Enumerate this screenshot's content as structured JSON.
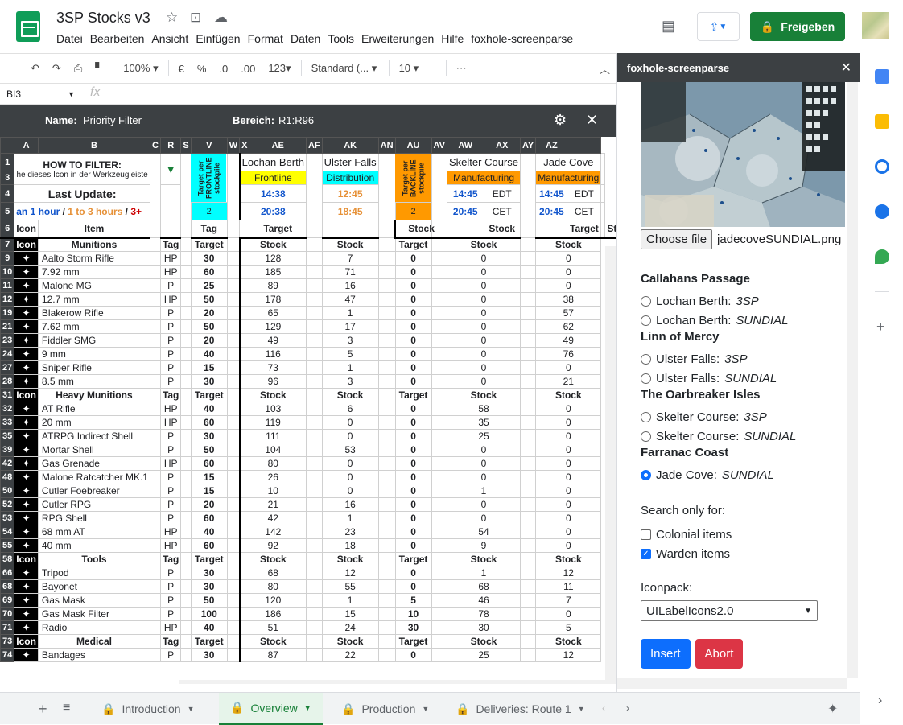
{
  "app": {
    "title": "3SP Stocks v3",
    "menu": [
      "Datei",
      "Bearbeiten",
      "Ansicht",
      "Einfügen",
      "Format",
      "Daten",
      "Tools",
      "Erweiterungen",
      "Hilfe",
      "foxhole-screenparse"
    ],
    "share_label": "Freigeben"
  },
  "toolbar": {
    "zoom": "100%",
    "currency": "€",
    "percent": "%",
    "dec_less": ".0",
    "dec_more": ".00",
    "format_more": "123",
    "font": "Standard (...",
    "font_size": "10",
    "more": "⋯"
  },
  "formula": {
    "cell_ref": "BI3",
    "fx": "fx"
  },
  "filterbar": {
    "name_label": "Name:",
    "name_value": "Priority Filter",
    "range_label": "Bereich:",
    "range_value": "R1:R96"
  },
  "columns": [
    "A",
    "B",
    "C",
    "R",
    "S",
    "V",
    "W",
    "X",
    "AE",
    "AF",
    "AK",
    "AN",
    "AU",
    "AV",
    "AW",
    "AX",
    "AY",
    "AZ"
  ],
  "header": {
    "how_to_filter": "HOW TO FILTER:",
    "how_to_filter_sub": "he dieses Icon in der Werkzeugleiste",
    "last_update": "Last Update:",
    "legend_blue": "an 1 hour",
    "legend_sep1": " / ",
    "legend_orange": "1 to 3 hours",
    "legend_sep2": " / ",
    "legend_red": "3+",
    "target_frontline": "Target per FRONTLINE stockpile",
    "target_backline": "Target per BACKLINE stockpile",
    "frontline_val": "2",
    "backline_val": "2",
    "icon": "Icon",
    "item": "Item",
    "tag": "Tag",
    "target": "Target",
    "stock": "Stock",
    "filter_icon": "▼",
    "locations": [
      {
        "name": "Lochan Berth",
        "type": "Frontline",
        "t1": "14:38",
        "t2": "20:38",
        "tz1": "",
        "tz2": "",
        "color": "blue"
      },
      {
        "name": "Ulster Falls",
        "type": "Distribution",
        "t1": "12:45",
        "t2": "18:45",
        "tz1": "",
        "tz2": "",
        "color": "orange"
      },
      {
        "name": "Skelter Course",
        "type": "Manufacturing",
        "t1": "14:45",
        "t2": "20:45",
        "tz1": "EDT",
        "tz2": "CET",
        "color": "blue"
      },
      {
        "name": "Jade Cove",
        "type": "Manufacturing",
        "t1": "14:45",
        "t2": "20:45",
        "tz1": "EDT",
        "tz2": "CET",
        "color": "blue"
      }
    ]
  },
  "rows": [
    {
      "rn": "7",
      "section": "Munitions"
    },
    {
      "rn": "9",
      "item": "Aalto Storm Rifle",
      "tag": "HP",
      "target": "30",
      "s1": "128",
      "s2": "7",
      "t2": "0",
      "s3": "0",
      "s4": "0"
    },
    {
      "rn": "10",
      "item": "7.92 mm",
      "tag": "HP",
      "target": "60",
      "s1": "185",
      "s2": "71",
      "t2": "0",
      "s3": "0",
      "s4": "0"
    },
    {
      "rn": "11",
      "item": "Malone MG",
      "tag": "P",
      "target": "25",
      "s1": "89",
      "s2": "16",
      "t2": "0",
      "s3": "0",
      "s4": "0"
    },
    {
      "rn": "12",
      "item": "12.7 mm",
      "tag": "HP",
      "target": "50",
      "s1": "178",
      "s2": "47",
      "t2": "0",
      "s3": "0",
      "s4": "38"
    },
    {
      "rn": "19",
      "item": "Blakerow Rifle",
      "tag": "P",
      "target": "20",
      "s1": "65",
      "s2": "1",
      "t2": "0",
      "s3": "0",
      "s4": "57"
    },
    {
      "rn": "21",
      "item": "7.62 mm",
      "tag": "P",
      "target": "50",
      "s1": "129",
      "s2": "17",
      "t2": "0",
      "s3": "0",
      "s4": "62"
    },
    {
      "rn": "23",
      "item": "Fiddler SMG",
      "tag": "P",
      "target": "20",
      "s1": "49",
      "s2": "3",
      "t2": "0",
      "s3": "0",
      "s4": "49"
    },
    {
      "rn": "24",
      "item": "9 mm",
      "tag": "P",
      "target": "40",
      "s1": "116",
      "s2": "5",
      "t2": "0",
      "s3": "0",
      "s4": "76"
    },
    {
      "rn": "27",
      "item": "Sniper Rifle",
      "tag": "P",
      "target": "15",
      "s1": "73",
      "s2": "1",
      "t2": "0",
      "s3": "0",
      "s4": "0"
    },
    {
      "rn": "28",
      "item": "8.5 mm",
      "tag": "P",
      "target": "30",
      "s1": "96",
      "s2": "3",
      "t2": "0",
      "s3": "0",
      "s4": "21"
    },
    {
      "rn": "31",
      "section": "Heavy Munitions"
    },
    {
      "rn": "32",
      "item": "AT Rifle",
      "tag": "HP",
      "target": "40",
      "s1": "103",
      "s2": "6",
      "t2": "0",
      "s3": "58",
      "s4": "0"
    },
    {
      "rn": "33",
      "item": "20 mm",
      "tag": "HP",
      "target": "60",
      "s1": "119",
      "s2": "0",
      "t2": "0",
      "s3": "35",
      "s4": "0"
    },
    {
      "rn": "35",
      "item": "ATRPG Indirect Shell",
      "tag": "P",
      "target": "30",
      "s1": "111",
      "s2": "0",
      "t2": "0",
      "s3": "25",
      "s4": "0"
    },
    {
      "rn": "39",
      "item": "Mortar Shell",
      "tag": "P",
      "target": "50",
      "s1": "104",
      "s2": "53",
      "t2": "0",
      "s3": "0",
      "s4": "0"
    },
    {
      "rn": "42",
      "item": "Gas Grenade",
      "tag": "HP",
      "target": "60",
      "s1": "80",
      "s2": "0",
      "t2": "0",
      "s3": "0",
      "s4": "0"
    },
    {
      "rn": "48",
      "item": "Malone Ratcatcher MK.1",
      "tag": "P",
      "target": "15",
      "s1": "26",
      "s2": "0",
      "t2": "0",
      "s3": "0",
      "s4": "0"
    },
    {
      "rn": "50",
      "item": "Cutler Foebreaker",
      "tag": "P",
      "target": "15",
      "s1": "10",
      "s2": "0",
      "t2": "0",
      "s3": "1",
      "s4": "0"
    },
    {
      "rn": "52",
      "item": "Cutler RPG",
      "tag": "P",
      "target": "20",
      "s1": "21",
      "s2": "16",
      "t2": "0",
      "s3": "0",
      "s4": "0"
    },
    {
      "rn": "53",
      "item": "RPG Shell",
      "tag": "P",
      "target": "60",
      "s1": "42",
      "s2": "1",
      "t2": "0",
      "s3": "0",
      "s4": "0"
    },
    {
      "rn": "54",
      "item": "68 mm AT",
      "tag": "HP",
      "target": "40",
      "s1": "142",
      "s2": "23",
      "t2": "0",
      "s3": "54",
      "s4": "0"
    },
    {
      "rn": "55",
      "item": "40 mm",
      "tag": "HP",
      "target": "60",
      "s1": "92",
      "s2": "18",
      "t2": "0",
      "s3": "9",
      "s4": "0"
    },
    {
      "rn": "58",
      "section": "Tools"
    },
    {
      "rn": "66",
      "item": "Tripod",
      "tag": "P",
      "target": "30",
      "s1": "68",
      "s2": "12",
      "t2": "0",
      "s3": "1",
      "s4": "12"
    },
    {
      "rn": "68",
      "item": "Bayonet",
      "tag": "P",
      "target": "30",
      "s1": "80",
      "s2": "55",
      "t2": "0",
      "s3": "68",
      "s4": "11"
    },
    {
      "rn": "69",
      "item": "Gas Mask",
      "tag": "P",
      "target": "50",
      "s1": "120",
      "s2": "1",
      "t2": "5",
      "s3": "46",
      "s4": "7"
    },
    {
      "rn": "70",
      "item": "Gas Mask Filter",
      "tag": "P",
      "target": "100",
      "s1": "186",
      "s2": "15",
      "t2": "10",
      "s3": "78",
      "s4": "0"
    },
    {
      "rn": "71",
      "item": "Radio",
      "tag": "HP",
      "target": "40",
      "s1": "51",
      "s2": "24",
      "t2": "30",
      "s3": "30",
      "s4": "5"
    },
    {
      "rn": "73",
      "section": "Medical"
    },
    {
      "rn": "74",
      "item": "Bandages",
      "tag": "P",
      "target": "30",
      "s1": "87",
      "s2": "22",
      "t2": "0",
      "s3": "25",
      "s4": "12"
    }
  ],
  "sheet_tabs": [
    {
      "label": "Introduction",
      "active": false
    },
    {
      "label": "Overview",
      "active": true
    },
    {
      "label": "Production",
      "active": false
    },
    {
      "label": "Deliveries: Route 1",
      "active": false
    }
  ],
  "panel": {
    "title": "foxhole-screenparse",
    "choose_file": "Choose file",
    "file_name": "jadecoveSUNDIAL.png",
    "regions": [
      {
        "name": "Callahans Passage",
        "options": [
          {
            "loc": "Lochan Berth: ",
            "tag": "3SP",
            "checked": false
          },
          {
            "loc": "Lochan Berth: ",
            "tag": "SUNDIAL",
            "checked": false
          }
        ]
      },
      {
        "name": "Linn of Mercy",
        "options": [
          {
            "loc": "Ulster Falls: ",
            "tag": "3SP",
            "checked": false
          },
          {
            "loc": "Ulster Falls: ",
            "tag": "SUNDIAL",
            "checked": false
          }
        ]
      },
      {
        "name": "The Oarbreaker Isles",
        "options": [
          {
            "loc": "Skelter Course: ",
            "tag": "3SP",
            "checked": false
          },
          {
            "loc": "Skelter Course: ",
            "tag": "SUNDIAL",
            "checked": false
          }
        ]
      },
      {
        "name": "Farranac Coast",
        "options": [
          {
            "loc": "Jade Cove: ",
            "tag": "SUNDIAL",
            "checked": true
          }
        ]
      }
    ],
    "search_label": "Search only for:",
    "colonial_label": "Colonial items",
    "colonial_checked": false,
    "warden_label": "Warden items",
    "warden_checked": true,
    "iconpack_label": "Iconpack:",
    "iconpack_value": "UILabelIcons2.0",
    "insert_label": "Insert",
    "abort_label": "Abort"
  }
}
